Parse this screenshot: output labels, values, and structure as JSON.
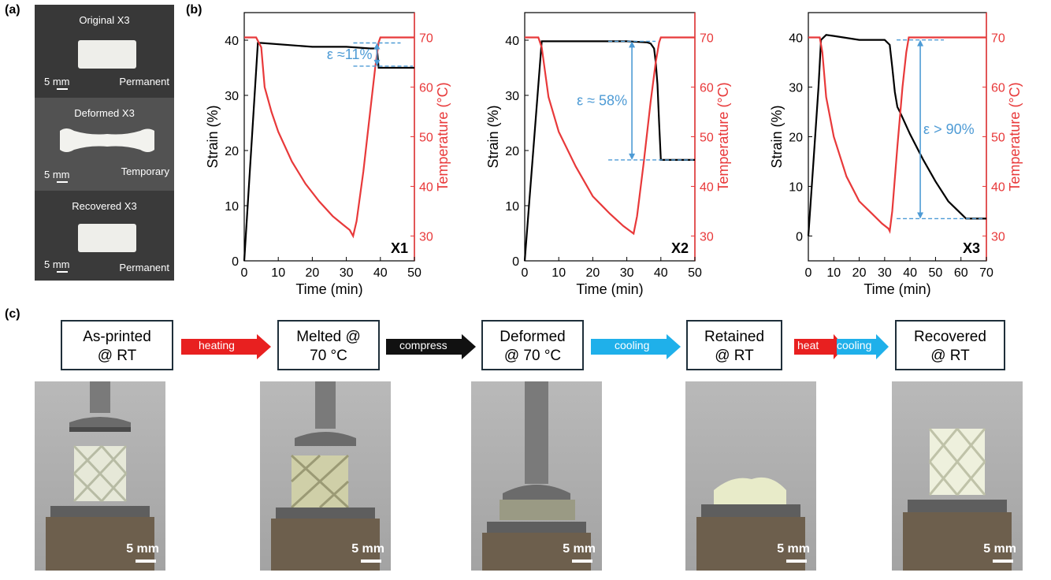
{
  "panel_a": {
    "letter": "(a)",
    "samples": [
      {
        "title": "Original X3",
        "scale": "5 mm",
        "state": "Permanent"
      },
      {
        "title": "Deformed X3",
        "scale": "5 mm",
        "state": "Temporary"
      },
      {
        "title": "Recovered X3",
        "scale": "5 mm",
        "state": "Permanent"
      }
    ]
  },
  "panel_b": {
    "letter": "(b)",
    "colors": {
      "strain": "#000000",
      "temperature": "#e8393a",
      "annotation": "#4e9bd5"
    }
  },
  "chart_data": [
    {
      "type": "line",
      "label": "X1",
      "xlabel": "Time (min)",
      "ylabel": "Strain (%)",
      "y2label": "Temperature (°C)",
      "xlim": [
        0,
        50
      ],
      "xticks": [
        0,
        10,
        20,
        30,
        40,
        50
      ],
      "ylim": [
        0,
        45
      ],
      "yticks": [
        0,
        10,
        20,
        30,
        40
      ],
      "y2lim": [
        25,
        75
      ],
      "y2ticks": [
        30,
        40,
        50,
        60,
        70
      ],
      "annotation": "ε ≈11%",
      "ann_x": 39,
      "ann_range": [
        35.3,
        39.5
      ],
      "series": [
        {
          "axis": "strain",
          "x": [
            0,
            4,
            5,
            20,
            30,
            37,
            39,
            39.5,
            50
          ],
          "y": [
            0,
            39.5,
            39.5,
            38.8,
            38.8,
            38.5,
            38.5,
            35,
            35
          ]
        },
        {
          "axis": "temperature",
          "x": [
            0,
            3.5,
            5,
            6,
            8,
            10,
            14,
            18,
            22,
            26,
            29,
            31,
            32,
            33,
            35,
            37,
            38.5,
            39.5,
            40,
            50
          ],
          "y": [
            70,
            70,
            68,
            60,
            55,
            51,
            45,
            40.5,
            37,
            34,
            32.3,
            31.2,
            30,
            33,
            43,
            55,
            64,
            69,
            70,
            70
          ]
        }
      ]
    },
    {
      "type": "line",
      "label": "X2",
      "xlabel": "Time (min)",
      "ylabel": "Strain (%)",
      "y2label": "Temperature (°C)",
      "xlim": [
        0,
        50
      ],
      "xticks": [
        0,
        10,
        20,
        30,
        40,
        50
      ],
      "ylim": [
        0,
        45
      ],
      "yticks": [
        0,
        10,
        20,
        30,
        40
      ],
      "y2lim": [
        25,
        75
      ],
      "y2ticks": [
        30,
        40,
        50,
        60,
        70
      ],
      "annotation": "ε ≈ 58%",
      "ann_x": 31.5,
      "ann_range": [
        18.3,
        39.8
      ],
      "series": [
        {
          "axis": "strain",
          "x": [
            0,
            5,
            10,
            20,
            30,
            36,
            37,
            38,
            38.5,
            39,
            39.5,
            40,
            50
          ],
          "y": [
            0,
            39.8,
            39.8,
            39.8,
            39.8,
            39.6,
            39.4,
            38.5,
            36,
            32,
            25,
            18.3,
            18.3
          ]
        },
        {
          "axis": "temperature",
          "x": [
            0,
            4,
            5,
            7,
            10,
            15,
            20,
            25,
            29,
            31,
            32,
            33,
            35,
            37,
            38.5,
            39.5,
            40,
            50
          ],
          "y": [
            70,
            70,
            68,
            58,
            51,
            44,
            38,
            34.5,
            32,
            31,
            30.5,
            34,
            45,
            57,
            65,
            69,
            70,
            70
          ]
        }
      ]
    },
    {
      "type": "line",
      "label": "X3",
      "xlabel": "Time (min)",
      "ylabel": "Strain (%)",
      "y2label": "Temperature (°C)",
      "xlim": [
        0,
        70
      ],
      "xticks": [
        0,
        10,
        20,
        30,
        40,
        50,
        60,
        70
      ],
      "ylim": [
        -5,
        45
      ],
      "yticks": [
        0,
        10,
        20,
        30,
        40
      ],
      "y2lim": [
        25,
        75
      ],
      "y2ticks": [
        30,
        40,
        50,
        60,
        70
      ],
      "annotation": "ε > 90%",
      "ann_x": 44,
      "ann_range": [
        3.5,
        39.5
      ],
      "series": [
        {
          "axis": "strain",
          "x": [
            0,
            2,
            4,
            5,
            7,
            10,
            20,
            30,
            32,
            33,
            34,
            35,
            36,
            40,
            45,
            50,
            55,
            60,
            62,
            70
          ],
          "y": [
            0,
            15,
            30,
            39.5,
            40.5,
            40.3,
            39.5,
            39.5,
            38.5,
            34,
            29,
            26,
            25,
            20.5,
            15.5,
            11,
            7,
            4.5,
            3.5,
            3.5
          ]
        },
        {
          "axis": "temperature",
          "x": [
            0,
            4.5,
            5.5,
            7,
            10,
            15,
            20,
            25,
            29,
            31.5,
            32,
            33,
            35,
            37,
            38.5,
            39.5,
            40,
            70
          ],
          "y": [
            70,
            70,
            67,
            58,
            50,
            42,
            37,
            34.5,
            32.5,
            31.5,
            31,
            35,
            48,
            60,
            67,
            70,
            70,
            70
          ]
        }
      ]
    }
  ],
  "panel_c": {
    "letter": "(c)",
    "steps": [
      {
        "line1": "As-printed",
        "line2": "@ RT"
      },
      {
        "line1": "Melted @",
        "line2": "70 °C"
      },
      {
        "line1": "Deformed",
        "line2": "@ 70 °C"
      },
      {
        "line1": "Retained",
        "line2": "@ RT"
      },
      {
        "line1": "Recovered",
        "line2": "@ RT"
      }
    ],
    "arrows": [
      {
        "label": "heating",
        "color": "#e82020"
      },
      {
        "label": "compress",
        "color": "#111111"
      },
      {
        "label": "cooling",
        "color": "#1fb0ea"
      },
      {
        "label_a": "heat",
        "label_b": "cooling",
        "color_a": "#e82020",
        "color_b": "#1fb0ea"
      }
    ],
    "photo_scale": "5 mm"
  }
}
